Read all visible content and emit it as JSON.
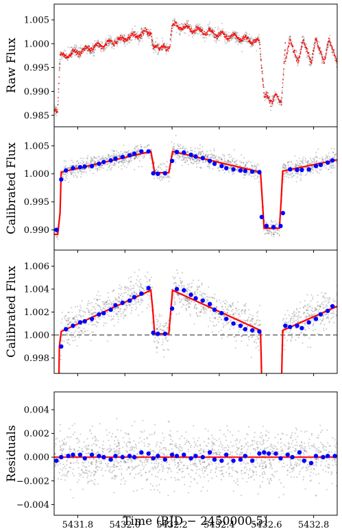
{
  "figure": {
    "xlabel": "Time (BJD − 2450000.5)"
  },
  "chart_data": [
    {
      "type": "scatter",
      "panel": "raw",
      "ylabel": "Raw Flux",
      "xlim": [
        5431.7,
        5432.9
      ],
      "ylim": [
        0.9826,
        1.0083
      ],
      "xticks": [
        5431.8,
        5432.0,
        5432.2,
        5432.4,
        5432.6,
        5432.8
      ],
      "yticks": [
        0.985,
        0.99,
        0.995,
        1.0,
        1.005
      ],
      "ytick_labels": [
        "0.985",
        "0.990",
        "0.995",
        "1.000",
        "1.005"
      ],
      "series": [
        {
          "role": "observed flux",
          "style": "gray points",
          "color": "#555555"
        },
        {
          "role": "binned model",
          "style": "red points",
          "color": "#ff0000"
        }
      ],
      "shape": {
        "pre_transit_level": 0.986,
        "post_first_rise": [
          [
            5431.72,
            0.9972
          ],
          [
            5432.1,
            1.0025
          ]
        ],
        "dip_1": {
          "x": [
            5432.12,
            5432.19
          ],
          "level": 0.9993
        },
        "after_dip_1": [
          [
            5432.2,
            1.0038
          ],
          [
            5432.56,
            1.0005
          ]
        ],
        "dip_2": {
          "x": [
            5432.585,
            5432.665
          ],
          "level": 0.9885
        },
        "oscillation_after": {
          "mean": 0.9985,
          "amplitude": 0.0025,
          "period": 0.055
        }
      }
    },
    {
      "type": "scatter",
      "panel": "calibrated",
      "ylabel": "Calibrated Flux",
      "xlim": [
        5431.7,
        5432.9
      ],
      "ylim": [
        0.9864,
        1.0084
      ],
      "yticks": [
        0.99,
        0.995,
        1.0,
        1.005
      ],
      "ytick_labels": [
        "0.990",
        "0.995",
        "1.000",
        "1.005"
      ],
      "series": [
        {
          "role": "calibrated flux",
          "style": "gray points",
          "color": "#555555"
        },
        {
          "role": "model",
          "style": "red line",
          "color": "#ff0000"
        },
        {
          "role": "binned flux",
          "style": "blue dots",
          "color": "#0000ff"
        }
      ],
      "binned": {
        "x": [
          5431.71,
          5431.73,
          5431.75,
          5431.78,
          5431.81,
          5431.83,
          5431.86,
          5431.89,
          5431.91,
          5431.94,
          5431.96,
          5431.99,
          5432.02,
          5432.04,
          5432.07,
          5432.1,
          5432.12,
          5432.14,
          5432.17,
          5432.2,
          5432.22,
          5432.25,
          5432.28,
          5432.3,
          5432.33,
          5432.36,
          5432.38,
          5432.41,
          5432.43,
          5432.46,
          5432.49,
          5432.51,
          5432.54,
          5432.57,
          5432.58,
          5432.6,
          5432.63,
          5432.66,
          5432.67,
          5432.7,
          5432.73,
          5432.75,
          5432.78,
          5432.81,
          5432.83,
          5432.86,
          5432.88
        ],
        "y": [
          0.99,
          0.999,
          1.0006,
          1.001,
          1.0012,
          1.0013,
          1.0014,
          1.0018,
          1.0021,
          1.0024,
          1.0027,
          1.003,
          1.0033,
          1.0036,
          1.004,
          1.004,
          1.0001,
          1.0,
          1.0001,
          1.0023,
          1.0039,
          1.0038,
          1.0034,
          1.0031,
          1.0028,
          1.0023,
          1.0018,
          1.0014,
          1.001,
          1.0008,
          1.0006,
          1.0005,
          1.0004,
          1.0003,
          0.9923,
          0.9907,
          0.9905,
          0.9907,
          0.993,
          1.0008,
          1.0007,
          1.0007,
          1.0008,
          1.0014,
          1.0016,
          1.002,
          1.0024
        ]
      },
      "model_line": {
        "x": [
          5431.7,
          5431.715,
          5431.725,
          5431.73,
          5432.11,
          5432.118,
          5432.126,
          5432.186,
          5432.194,
          5432.202,
          5432.575,
          5432.583,
          5432.59,
          5432.655,
          5432.662,
          5432.669,
          5432.9
        ],
        "y": [
          0.9892,
          0.9892,
          0.993,
          1.0003,
          1.004,
          1.0022,
          1.0002,
          1.0002,
          1.002,
          1.004,
          1.0003,
          0.995,
          0.9903,
          0.9903,
          0.995,
          1.0005,
          1.0025
        ]
      }
    },
    {
      "type": "scatter",
      "panel": "calibrated-zoom",
      "ylabel": "Calibrated Flux",
      "xlim": [
        5431.7,
        5432.9
      ],
      "ylim": [
        0.99665,
        1.0074
      ],
      "yticks": [
        0.998,
        1.0,
        1.002,
        1.004,
        1.006
      ],
      "ytick_labels": [
        "0.998",
        "1.000",
        "1.002",
        "1.004",
        "1.006"
      ],
      "reference_line": {
        "y": 1.0,
        "style": "dashed",
        "color": "#808080"
      },
      "series": [
        {
          "role": "calibrated flux",
          "style": "gray points",
          "color": "#555555"
        },
        {
          "role": "model",
          "style": "red line",
          "color": "#ff0000"
        },
        {
          "role": "binned flux",
          "style": "blue dots",
          "color": "#0000ff"
        }
      ],
      "binned": {
        "x": [
          5431.73,
          5431.75,
          5431.78,
          5431.81,
          5431.83,
          5431.86,
          5431.89,
          5431.91,
          5431.94,
          5431.96,
          5431.99,
          5432.02,
          5432.04,
          5432.07,
          5432.1,
          5432.12,
          5432.14,
          5432.17,
          5432.2,
          5432.22,
          5432.25,
          5432.28,
          5432.3,
          5432.33,
          5432.36,
          5432.38,
          5432.41,
          5432.43,
          5432.46,
          5432.49,
          5432.51,
          5432.54,
          5432.57,
          5432.68,
          5432.7,
          5432.73,
          5432.75,
          5432.78,
          5432.81,
          5432.83,
          5432.86,
          5432.88
        ],
        "y": [
          0.999,
          1.0005,
          1.0008,
          1.0011,
          1.0012,
          1.0014,
          1.0018,
          1.0019,
          1.0022,
          1.0026,
          1.0028,
          1.003,
          1.0033,
          1.0036,
          1.0041,
          1.0002,
          1.0001,
          1.0001,
          1.0023,
          1.004,
          1.0039,
          1.0035,
          1.0032,
          1.003,
          1.0027,
          1.0022,
          1.0019,
          1.0014,
          1.001,
          1.0008,
          1.0005,
          1.0004,
          1.0003,
          1.0008,
          1.0007,
          1.0008,
          1.0006,
          1.0011,
          1.0014,
          1.0018,
          1.0021,
          1.0025
        ]
      },
      "model_line": {
        "x": [
          5431.72,
          5431.722,
          5431.73,
          5432.11,
          5432.118,
          5432.126,
          5432.186,
          5432.194,
          5432.202,
          5432.575,
          5432.58,
          5432.664,
          5432.669,
          5432.9
        ],
        "y": [
          0.996,
          0.999,
          1.0003,
          1.0039,
          1.0022,
          1.0001,
          1.0001,
          1.002,
          1.0039,
          1.0004,
          0.996,
          0.996,
          1.0004,
          1.0025
        ]
      }
    },
    {
      "type": "scatter",
      "panel": "residuals",
      "ylabel": "Residuals",
      "xlim": [
        5431.7,
        5432.9
      ],
      "ylim": [
        -0.0049,
        0.0055
      ],
      "xticks": [
        5431.8,
        5432.0,
        5432.2,
        5432.4,
        5432.6,
        5432.8
      ],
      "xtick_labels": [
        "5431.8",
        "5432.0",
        "5432.2",
        "5432.4",
        "5432.6",
        "5432.8"
      ],
      "yticks": [
        -0.004,
        -0.002,
        0.0,
        0.002,
        0.004
      ],
      "ytick_labels": [
        "−0.004",
        "−0.002",
        "0.000",
        "0.002",
        "0.004"
      ],
      "reference_line": {
        "y": 0.0,
        "style": "solid",
        "color": "#ff0000"
      },
      "series": [
        {
          "role": "residuals",
          "style": "gray points",
          "color": "#555555"
        },
        {
          "role": "binned residuals",
          "style": "blue dots",
          "color": "#0000ff"
        }
      ],
      "binned": {
        "x": [
          5431.71,
          5431.73,
          5431.76,
          5431.78,
          5431.81,
          5431.83,
          5431.86,
          5431.89,
          5431.91,
          5431.94,
          5431.96,
          5431.99,
          5432.02,
          5432.04,
          5432.07,
          5432.1,
          5432.12,
          5432.14,
          5432.17,
          5432.2,
          5432.22,
          5432.25,
          5432.28,
          5432.3,
          5432.33,
          5432.36,
          5432.38,
          5432.41,
          5432.43,
          5432.46,
          5432.49,
          5432.51,
          5432.54,
          5432.57,
          5432.59,
          5432.61,
          5432.64,
          5432.66,
          5432.69,
          5432.71,
          5432.74,
          5432.76,
          5432.79,
          5432.81,
          5432.84,
          5432.86,
          5432.89
        ],
        "y": [
          -0.0003,
          0.0,
          0.0001,
          0.0002,
          0.0002,
          -0.0001,
          0.0002,
          0.0001,
          0.0,
          -0.0002,
          0.0001,
          0.0,
          0.0001,
          0.0,
          0.0004,
          0.0003,
          -0.0001,
          0.0001,
          -0.0002,
          0.0002,
          0.0001,
          0.0002,
          -0.0001,
          0.0001,
          0.0,
          0.0004,
          -0.0002,
          -0.0003,
          0.0002,
          -0.0003,
          -0.0002,
          0.0001,
          -0.0003,
          0.0003,
          0.0004,
          0.0003,
          0.0003,
          -0.0001,
          0.0002,
          0.0,
          0.0004,
          -0.0003,
          -0.0005,
          0.0001,
          0.0,
          0.0001,
          0.0001
        ]
      }
    }
  ]
}
